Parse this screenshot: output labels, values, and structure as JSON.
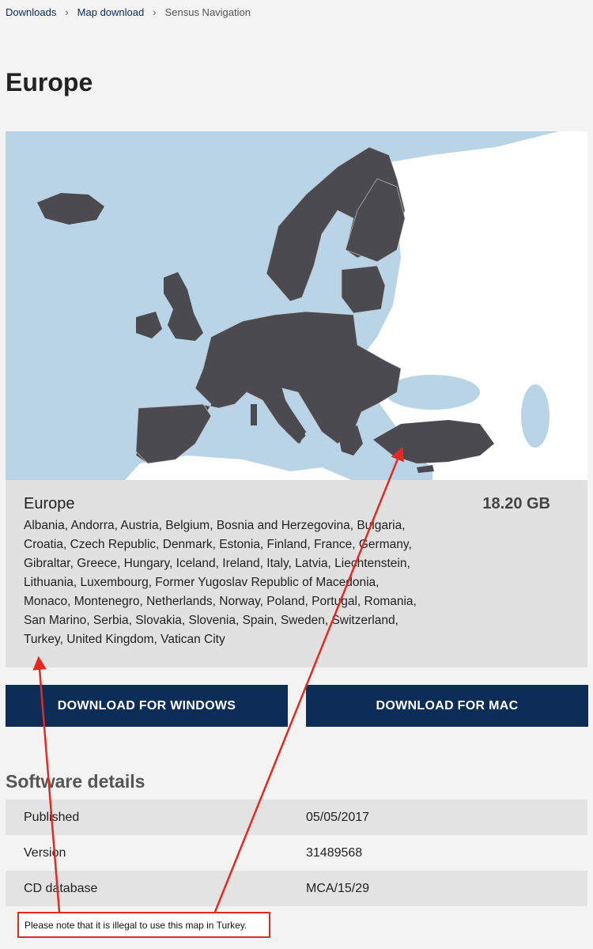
{
  "breadcrumb": {
    "items": [
      "Downloads",
      "Map download"
    ],
    "current": "Sensus Navigation"
  },
  "title": "Europe",
  "map_card": {
    "region": "Europe",
    "size": "18.20 GB",
    "countries_lines": [
      "Albania, Andorra, Austria, Belgium, Bosnia and Herzegovina, Bulgaria,",
      "Croatia, Czech Republic, Denmark, Estonia, Finland, France, Germany,",
      "Gibraltar, Greece, Hungary, Iceland, Ireland, Italy, Latvia, Liechtenstein,",
      "Lithuania, Luxembourg, Former Yugoslav Republic of Macedonia,",
      "Monaco, Montenegro, Netherlands, Norway, Poland, Portugal, Romania,",
      "San Marino, Serbia, Slovakia, Slovenia, Spain, Sweden, Switzerland,",
      "Turkey, United Kingdom, Vatican City"
    ]
  },
  "buttons": {
    "windows": "DOWNLOAD FOR WINDOWS",
    "mac": "DOWNLOAD FOR MAC"
  },
  "software_details": {
    "title": "Software details",
    "rows": [
      {
        "label": "Published",
        "value": "05/05/2017"
      },
      {
        "label": "Version",
        "value": "31489568"
      },
      {
        "label": "CD database",
        "value": "MCA/15/29"
      }
    ]
  },
  "annotation": {
    "note": "Please note that it is illegal to use this map in Turkey.",
    "color": "#e32a22"
  },
  "colors": {
    "button_bg": "#0c2d57",
    "sea": "#b9d4e6",
    "land_covered": "#4a4a50",
    "land_other": "#ffffff"
  }
}
